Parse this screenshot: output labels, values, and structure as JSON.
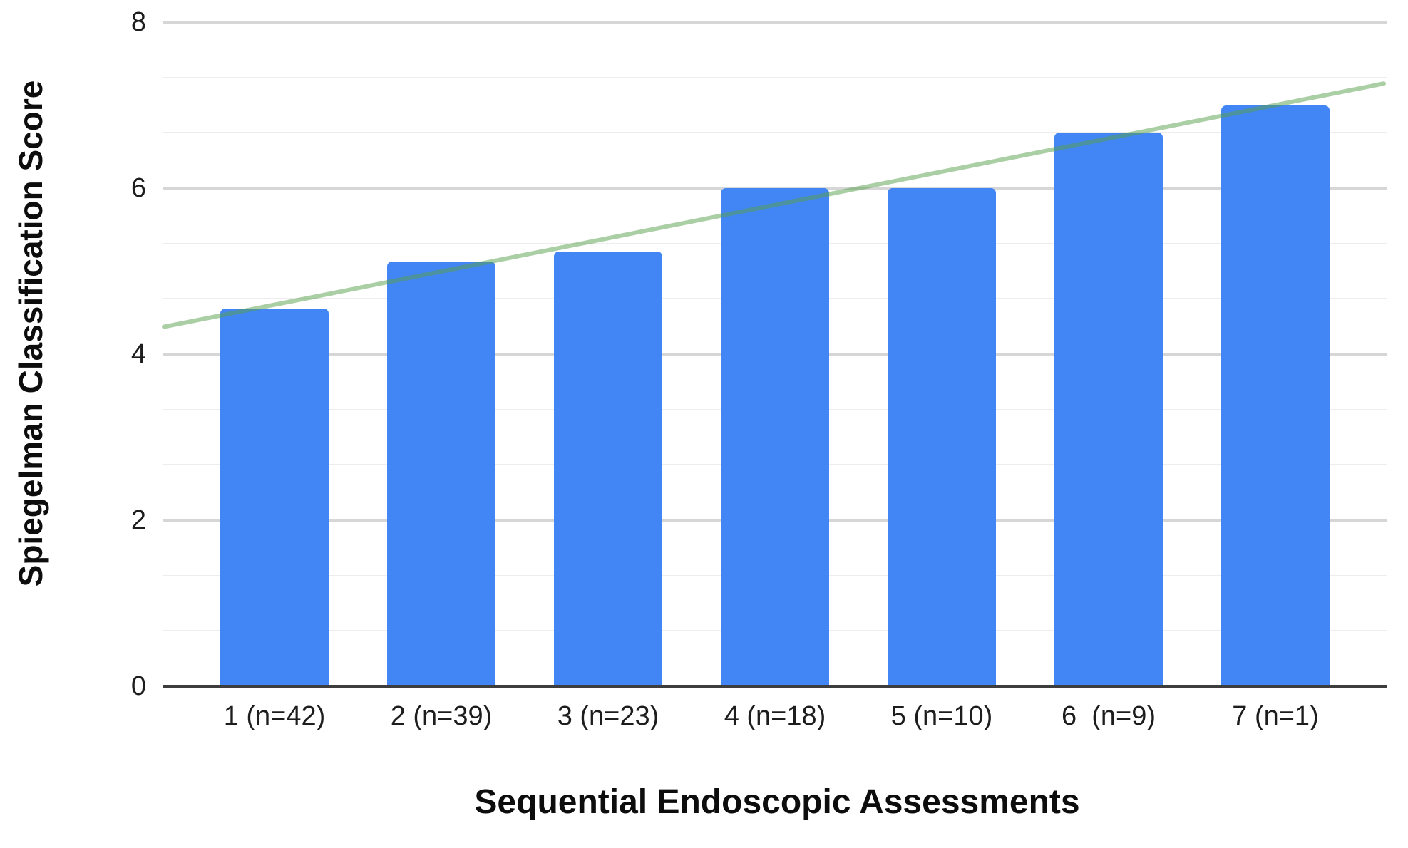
{
  "chart_data": {
    "type": "bar",
    "title": "",
    "xlabel": "Sequential Endoscopic Assessments",
    "ylabel": "Spiegelman Classification Score",
    "categories": [
      "1 (n=42)",
      "2 (n=39)",
      "3 (n=23)",
      "4 (n=18)",
      "5 (n=10)",
      "6  (n=9)",
      "7 (n=1)"
    ],
    "values": [
      4.55,
      5.12,
      5.24,
      6.0,
      6.0,
      6.67,
      7.0
    ],
    "ylim": [
      0,
      8
    ],
    "yticks": [
      0,
      2,
      4,
      6,
      8
    ],
    "minor_gridlines_per_major": 2,
    "grid": true,
    "legend": "none",
    "bar_color": "#4285F4",
    "trendline": {
      "type": "linear",
      "color": "#57a04a",
      "opacity": 0.5,
      "start_value": 4.33,
      "end_value": 7.26
    }
  }
}
